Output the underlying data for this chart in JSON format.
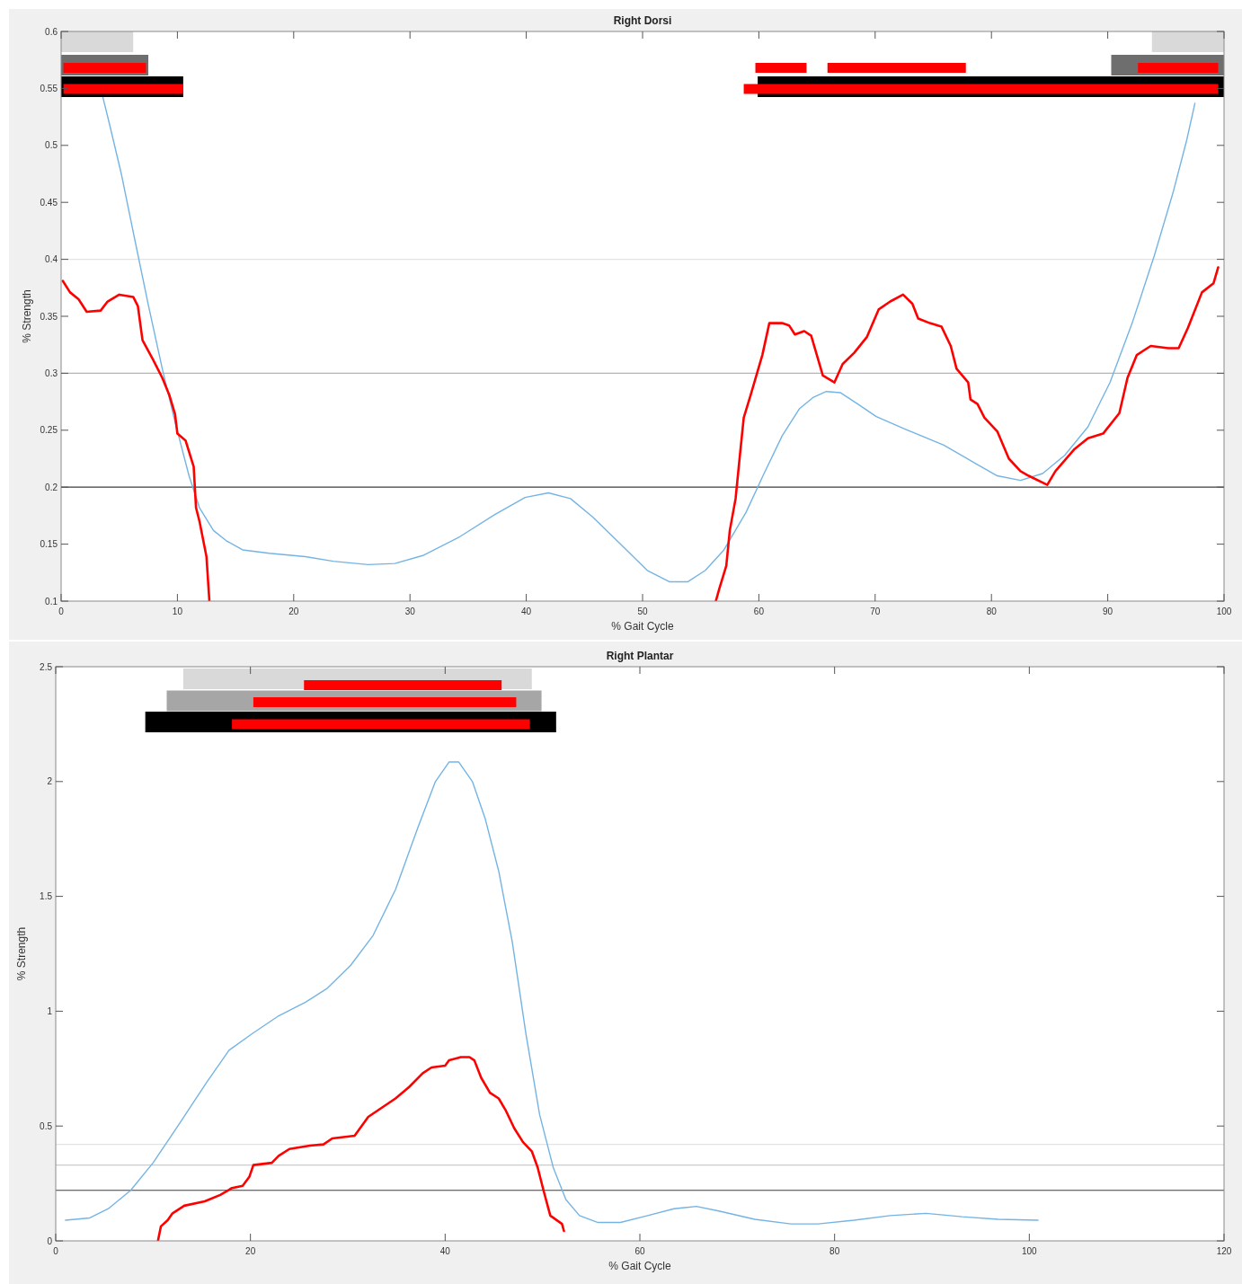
{
  "chart_data": [
    {
      "type": "line",
      "title": "Right Dorsi",
      "xlabel": "% Gait Cycle",
      "ylabel": "% Strength",
      "xlim": [
        0,
        100
      ],
      "ylim": [
        0.1,
        0.6
      ],
      "xticks": [
        0,
        10,
        20,
        30,
        40,
        50,
        60,
        70,
        80,
        90,
        100
      ],
      "yticks": [
        0.1,
        0.15,
        0.2,
        0.25,
        0.3,
        0.35,
        0.4,
        0.45,
        0.5,
        0.55,
        0.6
      ],
      "ref_lines": [
        {
          "axis": "y",
          "value": 0.4,
          "color": "#e3e3e3"
        },
        {
          "axis": "y",
          "value": 0.3,
          "color": "#b4b4b4"
        },
        {
          "axis": "y",
          "value": 0.2,
          "color": "#3c3c3c"
        }
      ],
      "series": [
        {
          "color": "#74b4e4",
          "x": [
            3.6,
            4.2,
            5.2,
            6.3,
            7.5,
            8.7,
            9.8,
            11.0,
            11.9,
            13.1,
            14.2,
            15.6,
            17.9,
            21.0,
            23.4,
            26.4,
            28.7,
            31.1,
            34.2,
            37.3,
            39.9,
            41.9,
            43.8,
            45.7,
            48.1,
            50.4,
            52.3,
            53.9,
            55.4,
            57.0,
            58.9,
            60.4,
            62.0,
            63.5,
            64.7,
            65.8,
            67.0,
            68.5,
            70.1,
            72.8,
            75.9,
            78.6,
            80.5,
            82.5,
            84.4,
            86.3,
            88.3,
            90.2,
            92.1,
            94.0,
            95.6,
            96.8,
            97.5
          ],
          "values": [
            0.542,
            0.517,
            0.474,
            0.419,
            0.36,
            0.304,
            0.257,
            0.21,
            0.182,
            0.162,
            0.153,
            0.145,
            0.142,
            0.139,
            0.135,
            0.132,
            0.133,
            0.14,
            0.156,
            0.176,
            0.191,
            0.195,
            0.19,
            0.174,
            0.15,
            0.127,
            0.117,
            0.117,
            0.127,
            0.145,
            0.178,
            0.211,
            0.245,
            0.269,
            0.279,
            0.284,
            0.283,
            0.273,
            0.262,
            0.25,
            0.237,
            0.221,
            0.21,
            0.206,
            0.212,
            0.228,
            0.253,
            0.292,
            0.344,
            0.403,
            0.458,
            0.505,
            0.537
          ]
        },
        {
          "color": "#ff0000",
          "x": [
            0.15,
            0.77,
            1.5,
            2.2,
            3.4,
            4.0,
            5.0,
            6.2,
            6.6,
            7.0,
            7.9,
            8.7,
            9.3,
            9.8,
            10.0,
            10.7,
            11.4,
            11.6,
            11.9,
            12.5,
            12.75,
            34,
            56.3,
            56.6,
            57.2,
            57.5,
            58.0,
            58.3,
            58.7,
            59.3,
            60.3,
            60.9,
            62.0,
            62.6,
            63.1,
            63.9,
            64.5,
            65.5,
            66.5,
            67.2,
            68.2,
            69.3,
            70.3,
            71.3,
            72.4,
            73.2,
            73.7,
            74.7,
            75.7,
            76.5,
            77.0,
            78.0,
            78.2,
            78.8,
            79.4,
            80.5,
            81.5,
            82.5,
            83.2,
            84.8,
            85.5,
            87.1,
            88.3,
            89.6,
            91.0,
            91.7,
            92.5,
            93.7,
            95.2,
            96.1,
            96.9,
            98.1,
            99.1,
            99.5
          ],
          "values": [
            0.381,
            0.371,
            0.365,
            0.354,
            0.355,
            0.363,
            0.369,
            0.367,
            0.359,
            0.329,
            0.312,
            0.296,
            0.281,
            0.264,
            0.247,
            0.241,
            0.218,
            0.182,
            0.17,
            0.139,
            0.1,
            null,
            0.1,
            0.111,
            0.131,
            0.162,
            0.19,
            0.221,
            0.261,
            0.281,
            0.316,
            0.344,
            0.344,
            0.342,
            0.334,
            0.337,
            0.333,
            0.298,
            0.292,
            0.308,
            0.318,
            0.332,
            0.356,
            0.363,
            0.369,
            0.361,
            0.348,
            0.344,
            0.341,
            0.324,
            0.304,
            0.292,
            0.277,
            0.273,
            0.261,
            0.249,
            0.225,
            0.214,
            0.21,
            0.202,
            0.214,
            0.233,
            0.243,
            0.247,
            0.265,
            0.296,
            0.316,
            0.324,
            0.322,
            0.322,
            0.34,
            0.371,
            0.379,
            0.393
          ]
        },
        {
          "color": "#d9d9d9",
          "x": [
            0,
            6.2
          ],
          "values": [
            0.591,
            0.591
          ]
        },
        {
          "color": "#d9d9d9",
          "x": [
            93.8,
            100
          ],
          "values": [
            0.591,
            0.591
          ]
        },
        {
          "color": "#6e6e6e",
          "x": [
            0,
            7.5
          ],
          "values": [
            0.5705,
            0.5705
          ]
        },
        {
          "color": "#6e6e6e",
          "x": [
            90.3,
            100
          ],
          "values": [
            0.5705,
            0.5705
          ]
        },
        {
          "color": "#000000",
          "x": [
            0,
            10.5
          ],
          "values": [
            0.5515,
            0.5515
          ]
        },
        {
          "color": "#000000",
          "x": [
            59.9,
            100
          ],
          "values": [
            0.5515,
            0.5515
          ]
        },
        {
          "color": "#ff0000",
          "x": [
            0.2,
            7.3
          ],
          "values": [
            0.568,
            0.568
          ]
        },
        {
          "color": "#ff0000",
          "x": [
            59.7,
            64.1
          ],
          "values": [
            0.568,
            0.568
          ]
        },
        {
          "color": "#ff0000",
          "x": [
            65.9,
            77.8
          ],
          "values": [
            0.568,
            0.568
          ]
        },
        {
          "color": "#ff0000",
          "x": [
            92.6,
            99.5
          ],
          "values": [
            0.568,
            0.568
          ]
        },
        {
          "color": "#ff0000",
          "x": [
            0.2,
            10.5
          ],
          "values": [
            0.5495,
            0.5495
          ]
        },
        {
          "color": "#ff0000",
          "x": [
            58.7,
            99.5
          ],
          "values": [
            0.5495,
            0.5495
          ]
        }
      ]
    },
    {
      "type": "line",
      "title": "Right Plantar",
      "xlabel": "% Gait Cycle",
      "ylabel": "% Strength",
      "xlim": [
        0,
        120
      ],
      "ylim": [
        0,
        2.5
      ],
      "xticks": [
        0,
        20,
        40,
        60,
        80,
        100,
        120
      ],
      "yticks": [
        0,
        0.5,
        1,
        1.5,
        2,
        2.5
      ],
      "ref_lines": [
        {
          "axis": "y",
          "value": 0.42,
          "color": "#e3e3e3"
        },
        {
          "axis": "y",
          "value": 0.33,
          "color": "#cccccc"
        },
        {
          "axis": "y",
          "value": 0.22,
          "color": "#3c3c3c"
        }
      ],
      "series": [
        {
          "color": "#74b4e4",
          "x": [
            1.0,
            3.5,
            5.4,
            7.7,
            10.0,
            12.7,
            15.5,
            17.8,
            20.1,
            22.9,
            25.7,
            27.9,
            30.3,
            32.6,
            34.9,
            37.2,
            39.0,
            40.4,
            41.4,
            42.8,
            44.1,
            45.5,
            46.9,
            48.3,
            49.7,
            51.1,
            52.4,
            53.8,
            55.7,
            58.0,
            60.8,
            63.5,
            65.8,
            68.1,
            71.8,
            75.5,
            78.3,
            82.0,
            85.7,
            89.4,
            93.1,
            96.8,
            100.9
          ],
          "values": [
            0.09,
            0.1,
            0.14,
            0.22,
            0.34,
            0.51,
            0.69,
            0.83,
            0.9,
            0.98,
            1.04,
            1.1,
            1.2,
            1.33,
            1.53,
            1.8,
            2.0,
            2.085,
            2.085,
            2.0,
            1.84,
            1.61,
            1.3,
            0.9,
            0.55,
            0.32,
            0.18,
            0.11,
            0.08,
            0.08,
            0.11,
            0.14,
            0.15,
            0.13,
            0.094,
            0.074,
            0.074,
            0.09,
            0.11,
            0.12,
            0.105,
            0.094,
            0.09
          ]
        },
        {
          "color": "#ff0000",
          "x": [
            10.5,
            10.8,
            11.5,
            12.0,
            13.2,
            15.3,
            16.9,
            18.1,
            19.2,
            19.9,
            20.3,
            22.2,
            22.9,
            24.0,
            26.1,
            27.5,
            28.4,
            30.7,
            32.1,
            33.5,
            34.9,
            36.3,
            37.7,
            38.6,
            40.0,
            40.4,
            41.6,
            42.5,
            43.0,
            43.7,
            44.6,
            45.5,
            46.2,
            47.1,
            48.0,
            48.9,
            49.5,
            50.1,
            50.8,
            52.0,
            52.2
          ],
          "values": [
            0,
            0.063,
            0.09,
            0.12,
            0.153,
            0.172,
            0.2,
            0.23,
            0.24,
            0.28,
            0.33,
            0.34,
            0.37,
            0.4,
            0.415,
            0.42,
            0.446,
            0.458,
            0.54,
            0.58,
            0.62,
            0.67,
            0.73,
            0.755,
            0.763,
            0.786,
            0.8,
            0.8,
            0.786,
            0.71,
            0.645,
            0.62,
            0.57,
            0.49,
            0.43,
            0.39,
            0.32,
            0.22,
            0.11,
            0.074,
            0.043
          ]
        },
        {
          "color": "#d9d9d9",
          "x": [
            13.1,
            48.9
          ],
          "values": [
            2.447,
            2.447
          ]
        },
        {
          "color": "#a6a6a6",
          "x": [
            11.4,
            49.9
          ],
          "values": [
            2.351,
            2.351
          ]
        },
        {
          "color": "#000000",
          "x": [
            9.2,
            51.4
          ],
          "values": [
            2.259,
            2.259
          ]
        },
        {
          "color": "#ff0000",
          "x": [
            25.5,
            45.8
          ],
          "values": [
            2.42,
            2.42
          ]
        },
        {
          "color": "#ff0000",
          "x": [
            20.3,
            47.3
          ],
          "values": [
            2.345,
            2.345
          ]
        },
        {
          "color": "#ff0000",
          "x": [
            18.1,
            48.7
          ],
          "values": [
            2.25,
            2.25
          ]
        }
      ]
    }
  ]
}
